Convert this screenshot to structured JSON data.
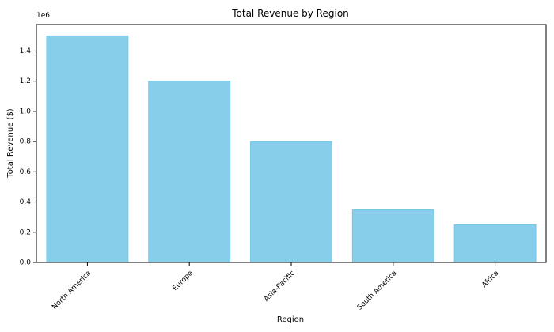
{
  "chart_data": {
    "type": "bar",
    "title": "Total Revenue by Region",
    "xlabel": "Region",
    "ylabel": "Total Revenue ($)",
    "categories": [
      "North America",
      "Europe",
      "Asia-Pacific",
      "South America",
      "Africa"
    ],
    "values": [
      1500000,
      1200000,
      800000,
      350000,
      250000
    ],
    "ylim": [
      0,
      1575000
    ],
    "y_ticks": [
      0,
      200000,
      400000,
      600000,
      800000,
      1000000,
      1200000,
      1400000
    ],
    "y_tick_labels": [
      "0.0",
      "0.2",
      "0.4",
      "0.6",
      "0.8",
      "1.0",
      "1.2",
      "1.4"
    ],
    "y_multiplier": "1e6",
    "x_tick_rotation": -45,
    "grid": false,
    "legend": "none",
    "bar_color": "#87ceeb",
    "bar_edge_color": "#6ec2e3"
  }
}
